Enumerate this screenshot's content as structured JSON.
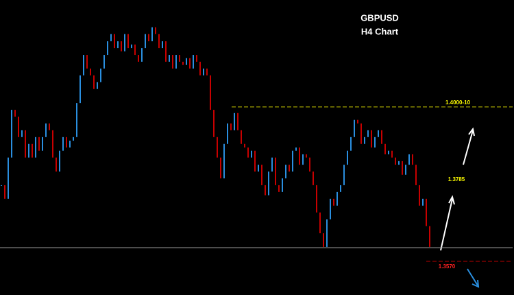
{
  "chart_data": {
    "type": "candlestick",
    "title": "GBPUSD",
    "subtitle": "H4 Chart",
    "ylim": [
      1.3476,
      1.4298
    ],
    "up_color": "#2a8fe0",
    "down_color": "#c80000",
    "values": [
      1.3782,
      1.3744,
      1.3859,
      1.3992,
      1.3973,
      1.3916,
      1.3935,
      1.3859,
      1.3897,
      1.3859,
      1.3916,
      1.3878,
      1.3916,
      1.3954,
      1.3935,
      1.3859,
      1.382,
      1.3878,
      1.3916,
      1.3887,
      1.3906,
      1.3916,
      1.4011,
      1.4088,
      1.4145,
      1.4107,
      1.4088,
      1.405,
      1.4069,
      1.4107,
      1.4145,
      1.4183,
      1.4203,
      1.4164,
      1.4183,
      1.4155,
      1.4203,
      1.4164,
      1.4174,
      1.4145,
      1.4126,
      1.4164,
      1.4203,
      1.4183,
      1.4222,
      1.4203,
      1.4164,
      1.4183,
      1.4126,
      1.4145,
      1.4107,
      1.4145,
      1.4126,
      1.4117,
      1.4136,
      1.4107,
      1.4145,
      1.4126,
      1.4088,
      1.4107,
      1.4088,
      1.3992,
      1.3916,
      1.3859,
      1.3801,
      1.3897,
      1.3954,
      1.3935,
      1.3983,
      1.3935,
      1.3897,
      1.3887,
      1.3859,
      1.3878,
      1.382,
      1.3839,
      1.3782,
      1.3754,
      1.382,
      1.3859,
      1.3782,
      1.3763,
      1.3801,
      1.3839,
      1.382,
      1.3878,
      1.3887,
      1.3839,
      1.3868,
      1.3859,
      1.382,
      1.3782,
      1.3706,
      1.3648,
      1.361,
      1.3687,
      1.3744,
      1.3725,
      1.3763,
      1.3782,
      1.3839,
      1.3878,
      1.3916,
      1.3964,
      1.3954,
      1.3897,
      1.3916,
      1.3935,
      1.3887,
      1.3916,
      1.3935,
      1.3897,
      1.3868,
      1.3878,
      1.3859,
      1.3839,
      1.3849,
      1.3811,
      1.3839,
      1.3868,
      1.3839,
      1.3782,
      1.3725,
      1.3744,
      1.3668,
      1.361
    ],
    "levels": [
      {
        "value": 1.4,
        "label": "1.4000-10",
        "color": "#c8c800",
        "dashed": true
      },
      {
        "value": 1.3608,
        "color": "#9a9a9a",
        "dashed": false
      },
      {
        "value": 1.357,
        "label": "1.3570",
        "color": "#c80000",
        "dashed": true
      }
    ],
    "annotations": [
      {
        "text": "1.3785",
        "color": "#ffff00"
      }
    ]
  }
}
